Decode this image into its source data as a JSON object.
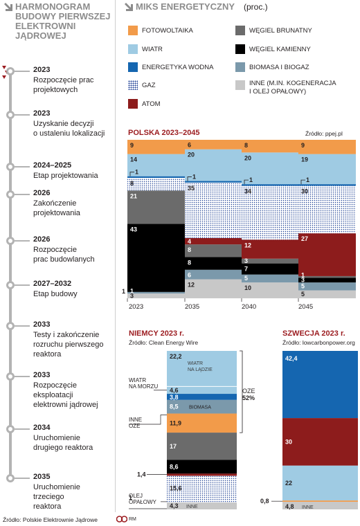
{
  "left_title": "HARMONOGRAM BUDOWY PIERWSZEJ ELEKTROWNI JĄDROWEJ",
  "left_title_lines": [
    "HARMONOGRAM",
    "BUDOWY PIERWSZEJ",
    "ELEKTROWNI",
    "JĄDROWEJ"
  ],
  "right_title": "MIKS ENERGETYCZNY",
  "right_unit": "(proc.)",
  "timeline": [
    {
      "year": "2023",
      "desc": [
        "Rozpoczęcie prac",
        "projektowych"
      ]
    },
    {
      "year": "2023",
      "desc": [
        "Uzyskanie decyzji",
        "o ustaleniu lokalizacji"
      ]
    },
    {
      "year": "2024–2025",
      "desc": [
        "Etap projektowania"
      ]
    },
    {
      "year": "2026",
      "desc": [
        "Zakończenie",
        "projektowania"
      ]
    },
    {
      "year": "2026",
      "desc": [
        "Rozpoczęcie",
        "prac budowlanych"
      ]
    },
    {
      "year": "2027–2032",
      "desc": [
        "Etap budowy"
      ]
    },
    {
      "year": "2033",
      "desc": [
        "Testy i zakończenie",
        "rozruchu pierwszego",
        "reaktora"
      ]
    },
    {
      "year": "2033",
      "desc": [
        "Rozpoczęcie",
        "eksploatacji",
        "elektrowni jądrowej"
      ]
    },
    {
      "year": "2034",
      "desc": [
        "Uruchomienie",
        "drugiego reaktora"
      ]
    },
    {
      "year": "2035",
      "desc": [
        "Uruchomienie",
        "trzeciego",
        "reaktora"
      ]
    }
  ],
  "legend": [
    {
      "key": "pv",
      "label": [
        "FOTOWOLTAIKA"
      ]
    },
    {
      "key": "wind",
      "label": [
        "WIATR"
      ]
    },
    {
      "key": "hydro",
      "label": [
        "ENERGETYKA WODNA"
      ]
    },
    {
      "key": "gas",
      "label": [
        "GAZ"
      ]
    },
    {
      "key": "nuclear",
      "label": [
        "ATOM"
      ]
    },
    {
      "key": "lignite",
      "label": [
        "WĘGIEL BRUNATNY"
      ]
    },
    {
      "key": "coal",
      "label": [
        "WĘGIEL KAMIENNY"
      ]
    },
    {
      "key": "biomass",
      "label": [
        "BIOMASA I BIOGAZ"
      ]
    },
    {
      "key": "other",
      "label": [
        "INNE (M.IN. KOGENERACJA",
        "I OLEJ OPAŁOWY)"
      ]
    }
  ],
  "colors": {
    "pv": "#f29b4a",
    "wind": "#9fcbe3",
    "hydro": "#1566b0",
    "gas": "dots",
    "nuclear": "#8d1c1c",
    "lignite": "#6b6b6b",
    "coal": "#000000",
    "biomass": "#7b99ab",
    "other": "#c8c8c8",
    "accent_title": "#9b1b1f",
    "grey_title": "#8c8c8c"
  },
  "chart_data": [
    {
      "type": "bar",
      "title": "POLSKA 2023–2045",
      "source": "Źródło: ppej.pl",
      "categories": [
        "2023",
        "2035",
        "2040",
        "2045"
      ],
      "series": [
        {
          "name": "INNE",
          "key": "other",
          "values": [
            3,
            12,
            10,
            5
          ]
        },
        {
          "name": "BIOMASA I BIOGAZ",
          "key": "biomass",
          "values": [
            1,
            6,
            5,
            5
          ]
        },
        {
          "name": "WĘGIEL KAMIENNY",
          "key": "coal",
          "values": [
            43,
            8,
            7,
            3
          ]
        },
        {
          "name": "WĘGIEL BRUNATNY",
          "key": "lignite",
          "values": [
            21,
            8,
            3,
            1
          ]
        },
        {
          "name": "ATOM",
          "key": "nuclear",
          "values": [
            0,
            4,
            12,
            27
          ]
        },
        {
          "name": "GAZ",
          "key": "gas",
          "values": [
            8,
            35,
            34,
            30
          ]
        },
        {
          "name": "ENERGETYKA WODNA",
          "key": "hydro",
          "values": [
            1,
            1,
            1,
            1
          ]
        },
        {
          "name": "WIATR",
          "key": "wind",
          "values": [
            14,
            20,
            20,
            19
          ]
        },
        {
          "name": "FOTOWOLTAIKA",
          "key": "pv",
          "values": [
            9,
            6,
            8,
            9
          ]
        }
      ]
    },
    {
      "type": "bar",
      "title": "NIEMCY 2023 r.",
      "source": "Źródło: Clean Energy Wire",
      "stack": [
        {
          "value": "22,2",
          "v": 22.2,
          "key": "wind",
          "label": [
            "WIATR",
            "NA LĄDZIE"
          ]
        },
        {
          "value": "4,6",
          "v": 4.6,
          "key": "wind",
          "label": []
        },
        {
          "value": "3,8",
          "v": 3.8,
          "key": "hydro",
          "label": []
        },
        {
          "value": "8,5",
          "v": 8.5,
          "key": "biomass",
          "label": [
            "BIOMASA"
          ]
        },
        {
          "value": "11,9",
          "v": 11.9,
          "key": "pv",
          "label": []
        },
        {
          "value": "17",
          "v": 17,
          "key": "lignite",
          "label": []
        },
        {
          "value": "8,6",
          "v": 8.6,
          "key": "coal",
          "label": []
        },
        {
          "value": "1,4",
          "v": 1.4,
          "key": "nuclear",
          "label": []
        },
        {
          "value": "15,6",
          "v": 15.6,
          "key": "gas",
          "label": []
        },
        {
          "value": "1",
          "v": 1,
          "key": "oil",
          "label": []
        },
        {
          "value": "4,3",
          "v": 4.3,
          "key": "other",
          "label": [
            "INNE"
          ]
        }
      ],
      "annotations": {
        "offshore": [
          "WIATR",
          "NA MORZU"
        ],
        "other_oze": [
          "INNE",
          "OZE"
        ],
        "oil": [
          "OLEJ",
          "OPAŁOWY"
        ],
        "oze_label": "OZE",
        "oze_value": "52%"
      }
    },
    {
      "type": "bar",
      "title": "SZWECJA 2023 r.",
      "source": "Źródło: lowcarbonpower.org",
      "stack": [
        {
          "value": "42,4",
          "v": 42.4,
          "key": "hydro",
          "label": []
        },
        {
          "value": "30",
          "v": 30,
          "key": "nuclear",
          "label": []
        },
        {
          "value": "22",
          "v": 22,
          "key": "wind",
          "label": []
        },
        {
          "value": "0,8",
          "v": 0.8,
          "key": "pv",
          "label": []
        },
        {
          "value": "4,8",
          "v": 4.8,
          "key": "other",
          "label": [
            "INNE"
          ]
        }
      ]
    }
  ],
  "footer": {
    "source": "Źródło: Polskie Elektrownie Jądrowe",
    "credit": "RM"
  }
}
